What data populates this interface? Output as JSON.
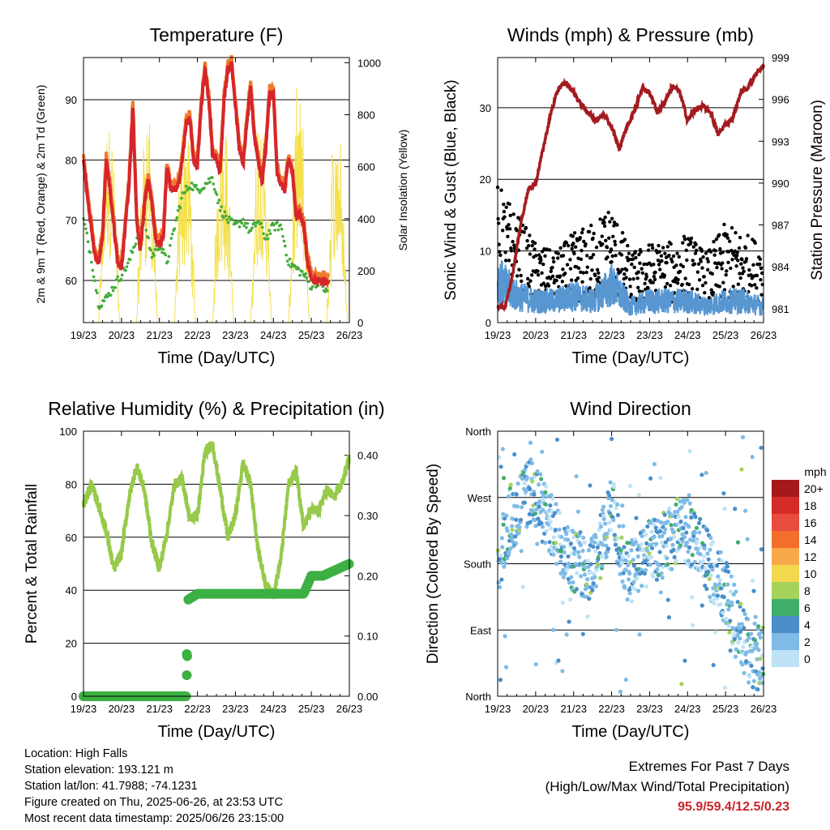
{
  "chart_data": [
    {
      "id": "temperature",
      "type": "line",
      "title": "Temperature (F)",
      "xlabel": "Time (Day/UTC)",
      "ylabel": "2m & 9m T (Red, Orange) & 2m Td (Green)",
      "y2label": "Solar Insolation (Yellow)",
      "x_ticks": [
        "19/23",
        "20/23",
        "21/23",
        "22/23",
        "23/23",
        "24/23",
        "25/23",
        "26/23"
      ],
      "ylim": [
        53,
        97
      ],
      "y_ticks": [
        60,
        70,
        80,
        90
      ],
      "y2lim": [
        0,
        1020
      ],
      "y2_ticks": [
        0,
        200,
        400,
        600,
        800,
        1000
      ],
      "grid": true,
      "series": [
        {
          "key": "t2m",
          "color": "#d6262b",
          "x": [
            0,
            0.1,
            0.2,
            0.3,
            0.4,
            0.5,
            0.6,
            0.7,
            0.8,
            0.9,
            1,
            1.1,
            1.2,
            1.3,
            1.4,
            1.5,
            1.6,
            1.7,
            1.8,
            1.9,
            2,
            2.1,
            2.2,
            2.3,
            2.4,
            2.5,
            2.6,
            2.7,
            2.8,
            2.9,
            3,
            3.1,
            3.2,
            3.3,
            3.4,
            3.5,
            3.6,
            3.7,
            3.8,
            3.9,
            4,
            4.1,
            4.2,
            4.3,
            4.4,
            4.5,
            4.6,
            4.7,
            4.8,
            4.9,
            5,
            5.1,
            5.2,
            5.3,
            5.4,
            5.5,
            5.6,
            5.7,
            5.8,
            5.9,
            6,
            6.1,
            6.2,
            6.3,
            6.4,
            6.5,
            6.6,
            6.7,
            6.8,
            6.9,
            7
          ],
          "values": [
            80,
            74,
            69,
            64,
            63,
            67,
            80,
            75,
            69,
            63,
            62,
            69,
            76,
            89,
            70,
            65,
            72,
            77,
            73,
            67,
            66,
            67,
            79,
            75,
            75,
            76,
            80,
            86,
            87,
            80,
            79,
            89,
            95,
            90,
            81,
            80,
            78,
            90,
            95,
            96,
            89,
            82,
            79,
            86,
            92,
            84,
            80,
            76,
            82,
            91,
            91,
            78,
            76,
            75,
            80,
            78,
            70,
            71,
            69,
            63,
            60,
            60,
            60,
            60,
            60,
            60,
            60,
            60,
            60,
            60,
            60
          ]
        },
        {
          "key": "t9m",
          "color": "#f07a2e",
          "x": [
            0,
            1,
            2,
            3,
            4,
            5,
            6,
            6.3
          ],
          "values": [
            80,
            62,
            66,
            79,
            94,
            95,
            89,
            61
          ]
        },
        {
          "key": "td2m",
          "color": "#44ab3a",
          "x": [
            0,
            0.2,
            0.4,
            0.6,
            0.8,
            1,
            1.2,
            1.4,
            1.6,
            1.8,
            2,
            2.2,
            2.4,
            2.6,
            2.8,
            3,
            3.2,
            3.4,
            3.6,
            3.8,
            4,
            4.2,
            4.4,
            4.6,
            4.8,
            5,
            5.2,
            5.4,
            5.6,
            5.8,
            6,
            6.2,
            6.4
          ],
          "values": [
            70,
            64,
            56,
            57,
            59,
            61,
            63,
            67,
            70,
            64,
            66,
            63,
            69,
            74,
            76,
            75,
            76,
            77,
            72,
            70,
            69,
            70,
            68,
            70,
            67,
            69,
            69,
            63,
            62,
            61,
            59,
            60,
            58
          ]
        },
        {
          "key": "solar",
          "color": "#f4e04d",
          "axis": "y2",
          "x": [
            0,
            0.35,
            0.45,
            0.55,
            0.65,
            0.75,
            1.35,
            1.45,
            1.55,
            1.65,
            1.75,
            2.35,
            2.45,
            2.55,
            2.65,
            2.75,
            3.35,
            3.45,
            3.55,
            3.65,
            3.75,
            4.35,
            4.45,
            4.55,
            4.65,
            4.75,
            5.35,
            5.45,
            5.55,
            5.65,
            5.75,
            6.35,
            6.45,
            6.55,
            6.65,
            6.75,
            7
          ],
          "values": [
            0,
            0,
            950,
            200,
            800,
            0,
            0,
            920,
            350,
            900,
            0,
            0,
            960,
            400,
            850,
            0,
            0,
            980,
            500,
            880,
            0,
            0,
            970,
            600,
            900,
            0,
            0,
            960,
            300,
            700,
            0,
            0,
            400,
            150,
            300,
            0,
            0
          ]
        }
      ]
    },
    {
      "id": "winds",
      "type": "scatter",
      "title": "Winds (mph) & Pressure (mb)",
      "xlabel": "Time (Day/UTC)",
      "ylabel": "Sonic Wind & Gust (Blue, Black)",
      "y2label": "Station Pressure (Maroon)",
      "x_ticks": [
        "19/23",
        "20/23",
        "21/23",
        "22/23",
        "23/23",
        "24/23",
        "25/23",
        "26/23"
      ],
      "ylim": [
        0,
        37
      ],
      "y_ticks": [
        0,
        10,
        20,
        30
      ],
      "y2lim": [
        980,
        999
      ],
      "y2_ticks": [
        981,
        984,
        987,
        990,
        993,
        996,
        999
      ],
      "grid": true,
      "series": [
        {
          "key": "pressure",
          "color": "#a31b1f",
          "axis": "y2",
          "x": [
            0,
            0.2,
            0.4,
            0.6,
            0.8,
            1,
            1.2,
            1.4,
            1.6,
            1.8,
            2,
            2.2,
            2.4,
            2.6,
            2.8,
            3,
            3.2,
            3.4,
            3.6,
            3.8,
            4,
            4.2,
            4.4,
            4.6,
            4.8,
            5,
            5.2,
            5.4,
            5.6,
            5.8,
            6,
            6.2,
            6.4,
            6.6,
            6.8,
            7
          ],
          "values": [
            981.2,
            981.1,
            983.5,
            987,
            989.5,
            990,
            992.5,
            995,
            996.8,
            997.2,
            996.5,
            995.6,
            995,
            994.5,
            995,
            994,
            992.5,
            994,
            995.2,
            996.8,
            996.5,
            995.1,
            995.8,
            997,
            996.5,
            994.5,
            995.3,
            995.5,
            995.1,
            993.5,
            994.2,
            994.7,
            996.5,
            996.9,
            997.8,
            998.4
          ]
        },
        {
          "key": "wind",
          "color": "#5796d1",
          "x": [
            0,
            0.5,
            1,
            1.5,
            2,
            2.5,
            3,
            3.5,
            4,
            4.5,
            5,
            5.5,
            6,
            6.5,
            7
          ],
          "values": [
            8,
            5,
            4,
            4,
            5,
            4,
            7,
            3,
            4,
            4,
            4,
            3,
            4,
            4,
            3
          ]
        },
        {
          "key": "gust",
          "color": "#000000",
          "x": [
            0,
            0.5,
            1,
            1.5,
            2,
            2.5,
            3,
            3.5,
            4,
            4.5,
            5,
            5.5,
            6,
            6.5,
            7
          ],
          "values": [
            14,
            11,
            8,
            7,
            9,
            10,
            12,
            7,
            8,
            8,
            9,
            7,
            10,
            9,
            8
          ]
        }
      ]
    },
    {
      "id": "humidity",
      "type": "line",
      "title": "Relative Humidity (%) & Precipitation (in)",
      "xlabel": "Time (Day/UTC)",
      "ylabel": "Percent & Total Rainfall",
      "x_ticks": [
        "19/23",
        "20/23",
        "21/23",
        "22/23",
        "23/23",
        "24/23",
        "25/23",
        "26/23"
      ],
      "ylim": [
        0,
        100
      ],
      "y_ticks": [
        0,
        20,
        40,
        60,
        80,
        100
      ],
      "y2lim": [
        0,
        0.44
      ],
      "y2_ticks": [
        "0.00",
        "0.10",
        "0.20",
        "0.30",
        "0.40"
      ],
      "grid": true,
      "series": [
        {
          "key": "rh",
          "color": "#97c94a",
          "x": [
            0,
            0.2,
            0.4,
            0.6,
            0.8,
            1,
            1.2,
            1.4,
            1.6,
            1.8,
            2,
            2.2,
            2.4,
            2.6,
            2.8,
            3,
            3.2,
            3.4,
            3.6,
            3.8,
            4,
            4.2,
            4.4,
            4.6,
            4.8,
            5,
            5.2,
            5.4,
            5.6,
            5.8,
            6,
            6.2,
            6.4,
            6.6,
            6.8,
            7
          ],
          "values": [
            72,
            80,
            72,
            62,
            48,
            54,
            75,
            87,
            78,
            58,
            48,
            62,
            80,
            82,
            67,
            68,
            92,
            95,
            78,
            60,
            68,
            88,
            80,
            55,
            42,
            38,
            52,
            80,
            85,
            64,
            70,
            70,
            78,
            75,
            80,
            90
          ]
        },
        {
          "key": "precip",
          "color": "#3cb043",
          "axis": "y2",
          "x": [
            0,
            2.7,
            2.72,
            2.75,
            3,
            4,
            5,
            5.5,
            5.8,
            6,
            6.3,
            7
          ],
          "values": [
            0,
            0,
            0.02,
            0.16,
            0.17,
            0.17,
            0.17,
            0.17,
            0.17,
            0.2,
            0.2,
            0.22
          ]
        }
      ]
    },
    {
      "id": "direction",
      "type": "scatter",
      "title": "Wind Direction",
      "xlabel": "Time (Day/UTC)",
      "ylabel": "Direction (Colored By Speed)",
      "x_ticks": [
        "19/23",
        "20/23",
        "21/23",
        "22/23",
        "23/23",
        "24/23",
        "25/23",
        "26/23"
      ],
      "y_tick_labels": [
        "North",
        "East",
        "South",
        "West",
        "North"
      ],
      "ylim": [
        0,
        360
      ],
      "grid": true,
      "x": [
        0,
        0.3,
        0.6,
        0.9,
        1.2,
        1.5,
        1.8,
        2.1,
        2.4,
        2.7,
        3,
        3.3,
        3.6,
        3.9,
        4.2,
        4.5,
        4.8,
        5.1,
        5.4,
        5.7,
        6,
        6.3,
        6.6,
        6.9
      ],
      "values": [
        180,
        240,
        260,
        280,
        250,
        220,
        200,
        180,
        175,
        200,
        260,
        180,
        170,
        190,
        200,
        210,
        230,
        220,
        190,
        170,
        140,
        100,
        60,
        50
      ],
      "legend": {
        "title": "mph",
        "labels": [
          "20+",
          "18",
          "16",
          "14",
          "12",
          "10",
          "8",
          "6",
          "4",
          "2",
          "0"
        ],
        "colors": [
          "#a5191b",
          "#d42d27",
          "#e84c3d",
          "#f36d2c",
          "#f9a94a",
          "#f1d84f",
          "#a5d25a",
          "#3faf6a",
          "#4a8fca",
          "#7fbbe6",
          "#bfe3f5"
        ]
      }
    }
  ],
  "footer": {
    "location": "Location: High Falls",
    "elevation": "Station elevation: 193.121 m",
    "latlon": "Station lat/lon: 41.7988; -74.1231",
    "created": "Figure created on Thu, 2025-06-26, at 23:53 UTC",
    "recent": "Most recent data timestamp: 2025/06/26 23:15:00"
  },
  "extremes": {
    "title": "Extremes For Past 7 Days",
    "subtitle": "(High/Low/Max Wind/Total Precipitation)",
    "values": "95.9/59.4/12.5/0.23"
  }
}
